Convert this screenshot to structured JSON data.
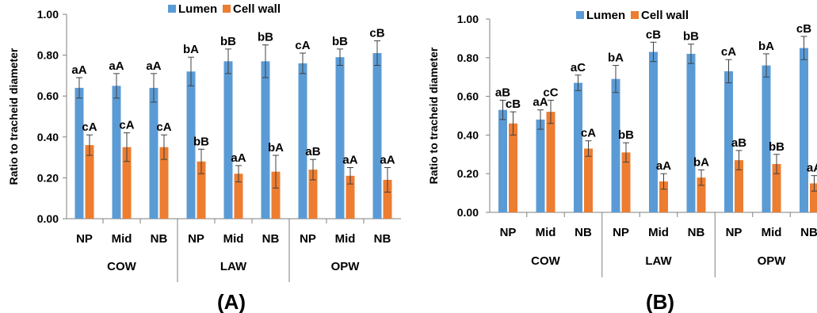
{
  "colors": {
    "lumen": "#5B9BD5",
    "cell_wall": "#ED7D31",
    "axis": "#7F7F7F",
    "error_bar": "#404040",
    "text": "#000000"
  },
  "chart_data": [
    {
      "type": "bar",
      "panel_label": "(A)",
      "ylabel": "Ratio to tracheid diameter",
      "ylim": [
        0,
        1.0
      ],
      "y_ticks": [
        "0.00",
        "0.20",
        "0.40",
        "0.60",
        "0.80",
        "1.00"
      ],
      "legend": {
        "placement": "top-center",
        "entries": [
          "Lumen",
          "Cell wall"
        ]
      },
      "groups": [
        "COW",
        "LAW",
        "OPW"
      ],
      "categories": [
        "NP",
        "Mid",
        "NB",
        "NP",
        "Mid",
        "NB",
        "NP",
        "Mid",
        "NB"
      ],
      "series": [
        {
          "name": "Lumen",
          "values": [
            0.64,
            0.65,
            0.64,
            0.72,
            0.77,
            0.77,
            0.76,
            0.79,
            0.81
          ],
          "errors": [
            0.05,
            0.06,
            0.07,
            0.07,
            0.06,
            0.08,
            0.05,
            0.04,
            0.06
          ],
          "labels": [
            "aA",
            "aA",
            "aA",
            "bA",
            "bB",
            "bB",
            "cA",
            "bB",
            "cB"
          ]
        },
        {
          "name": "Cell wall",
          "values": [
            0.36,
            0.35,
            0.35,
            0.28,
            0.22,
            0.23,
            0.24,
            0.21,
            0.19
          ],
          "errors": [
            0.05,
            0.07,
            0.06,
            0.06,
            0.04,
            0.08,
            0.05,
            0.04,
            0.06
          ],
          "labels": [
            "cA",
            "cA",
            "cA",
            "bB",
            "aA",
            "bA",
            "aB",
            "aA",
            "aA"
          ]
        }
      ]
    },
    {
      "type": "bar",
      "panel_label": "(B)",
      "ylabel": "Ratio to tracheid diameter",
      "ylim": [
        0,
        1.0
      ],
      "y_ticks": [
        "0.00",
        "0.20",
        "0.40",
        "0.60",
        "0.80",
        "1.00"
      ],
      "legend": {
        "placement": "top-center",
        "entries": [
          "Lumen",
          "Cell wall"
        ]
      },
      "groups": [
        "COW",
        "LAW",
        "OPW"
      ],
      "categories": [
        "NP",
        "Mid",
        "NB",
        "NP",
        "Mid",
        "NB",
        "NP",
        "Mid",
        "NB"
      ],
      "series": [
        {
          "name": "Lumen",
          "values": [
            0.53,
            0.48,
            0.67,
            0.69,
            0.83,
            0.82,
            0.73,
            0.76,
            0.85
          ],
          "errors": [
            0.05,
            0.05,
            0.04,
            0.07,
            0.05,
            0.05,
            0.06,
            0.06,
            0.06
          ],
          "labels": [
            "aB",
            "aA",
            "aC",
            "bA",
            "cB",
            "bB",
            "cA",
            "bA",
            "cB"
          ]
        },
        {
          "name": "Cell wall",
          "values": [
            0.46,
            0.52,
            0.33,
            0.31,
            0.16,
            0.18,
            0.27,
            0.25,
            0.15
          ],
          "errors": [
            0.06,
            0.06,
            0.04,
            0.05,
            0.04,
            0.04,
            0.05,
            0.05,
            0.04
          ],
          "labels": [
            "cB",
            "cC",
            "cA",
            "bB",
            "aA",
            "bA",
            "aB",
            "bB",
            "aA"
          ]
        }
      ]
    }
  ]
}
